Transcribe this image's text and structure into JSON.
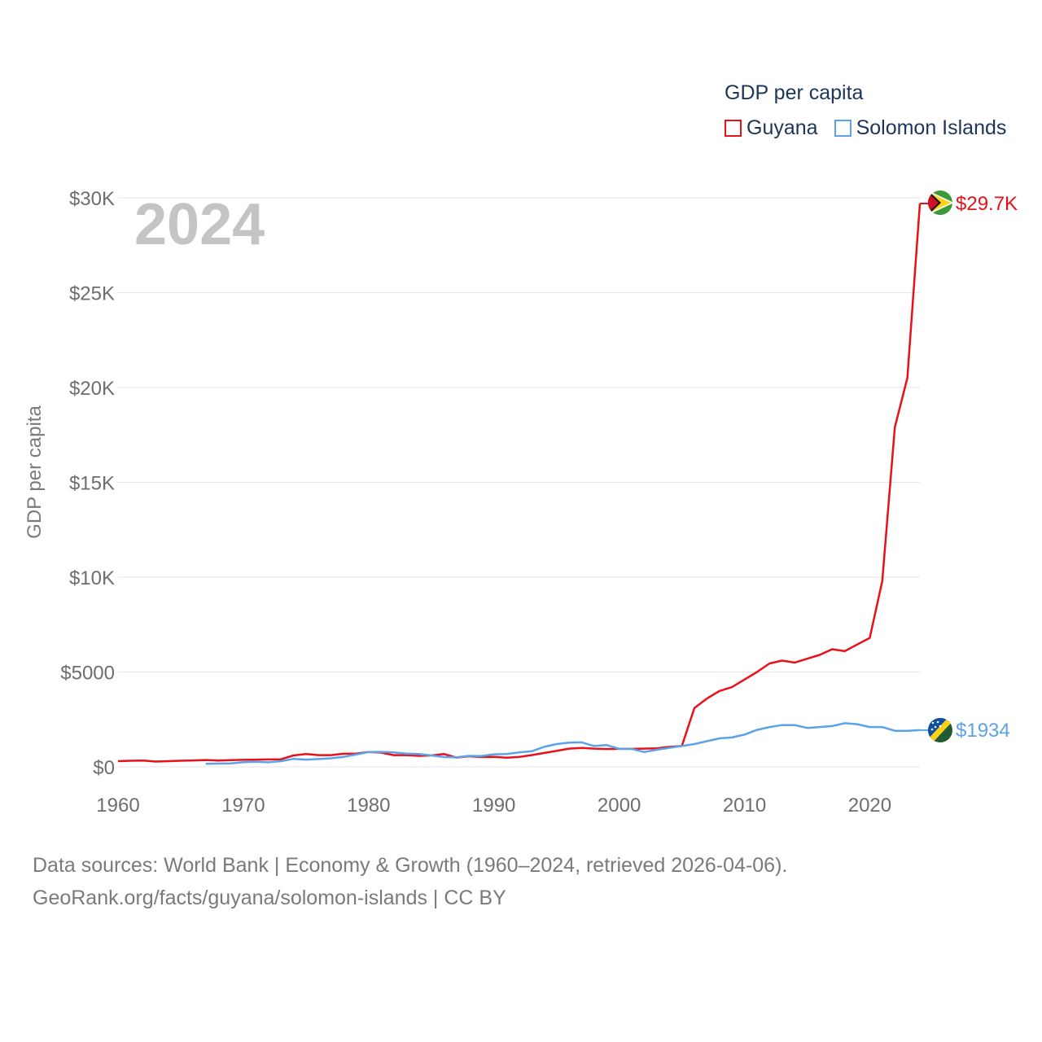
{
  "legend": {
    "title": "GDP per capita",
    "items": [
      {
        "label": "Guyana",
        "color": "#e8111a"
      },
      {
        "label": "Solomon Islands",
        "color": "#5ba3e8"
      }
    ]
  },
  "source": {
    "line1": "Data sources: World Bank | Economy & Growth (1960–2024, retrieved 2026-04-06).",
    "line2": "GeoRank.org/facts/guyana/solomon-islands | CC BY"
  },
  "chart_data": {
    "type": "line",
    "title": "GDP per capita",
    "year_label": "2024",
    "ylabel": "GDP per capita",
    "xlabel": "",
    "xlim": [
      1960,
      2024
    ],
    "ylim": [
      0,
      30000
    ],
    "x_ticks": [
      "1960",
      "1970",
      "1980",
      "1990",
      "2000",
      "2010",
      "2020"
    ],
    "y_ticks": [
      "$0",
      "$5000",
      "$10K",
      "$15K",
      "$20K",
      "$25K",
      "$30K"
    ],
    "grid": true,
    "legend_position": "top-right",
    "series": [
      {
        "name": "Guyana",
        "color": "#e8111a",
        "end_label": "$29.7K",
        "flag": "guyana-flag-icon",
        "years": [
          1960,
          1961,
          1962,
          1963,
          1964,
          1965,
          1966,
          1967,
          1968,
          1969,
          1970,
          1971,
          1972,
          1973,
          1974,
          1975,
          1976,
          1977,
          1978,
          1979,
          1980,
          1981,
          1982,
          1983,
          1984,
          1985,
          1986,
          1987,
          1988,
          1989,
          1990,
          1991,
          1992,
          1993,
          1994,
          1995,
          1996,
          1997,
          1998,
          1999,
          2000,
          2001,
          2002,
          2003,
          2004,
          2005,
          2006,
          2007,
          2008,
          2009,
          2010,
          2011,
          2012,
          2013,
          2014,
          2015,
          2016,
          2017,
          2018,
          2019,
          2020,
          2021,
          2022,
          2023,
          2024
        ],
        "values": [
          300,
          320,
          330,
          280,
          300,
          320,
          340,
          360,
          330,
          350,
          370,
          380,
          390,
          400,
          600,
          680,
          620,
          620,
          690,
          700,
          780,
          750,
          620,
          620,
          580,
          600,
          680,
          490,
          560,
          520,
          530,
          480,
          520,
          620,
          730,
          840,
          960,
          1000,
          960,
          940,
          950,
          950,
          960,
          980,
          1050,
          1100,
          3100,
          3600,
          4000,
          4200,
          4600,
          5000,
          5450,
          5600,
          5500,
          5700,
          5900,
          6200,
          6100,
          6450,
          6800,
          9800,
          17900,
          20500,
          29700
        ]
      },
      {
        "name": "Solomon Islands",
        "color": "#5ba3e8",
        "end_label": "$1934",
        "flag": "solomon-islands-flag-icon",
        "years": [
          1967,
          1968,
          1969,
          1970,
          1971,
          1972,
          1973,
          1974,
          1975,
          1976,
          1977,
          1978,
          1979,
          1980,
          1981,
          1982,
          1983,
          1984,
          1985,
          1986,
          1987,
          1988,
          1989,
          1990,
          1991,
          1992,
          1993,
          1994,
          1995,
          1996,
          1997,
          1998,
          1999,
          2000,
          2001,
          2002,
          2003,
          2004,
          2005,
          2006,
          2007,
          2008,
          2009,
          2010,
          2011,
          2012,
          2013,
          2014,
          2015,
          2016,
          2017,
          2018,
          2019,
          2020,
          2021,
          2022,
          2023,
          2024
        ],
        "values": [
          160,
          170,
          180,
          250,
          270,
          240,
          300,
          420,
          380,
          410,
          450,
          530,
          650,
          780,
          790,
          760,
          700,
          680,
          600,
          520,
          500,
          580,
          570,
          660,
          680,
          760,
          820,
          1050,
          1200,
          1280,
          1290,
          1100,
          1150,
          950,
          950,
          780,
          900,
          1000,
          1100,
          1200,
          1350,
          1500,
          1550,
          1700,
          1950,
          2100,
          2200,
          2200,
          2050,
          2100,
          2150,
          2300,
          2250,
          2100,
          2100,
          1900,
          1900,
          1934
        ]
      }
    ]
  }
}
